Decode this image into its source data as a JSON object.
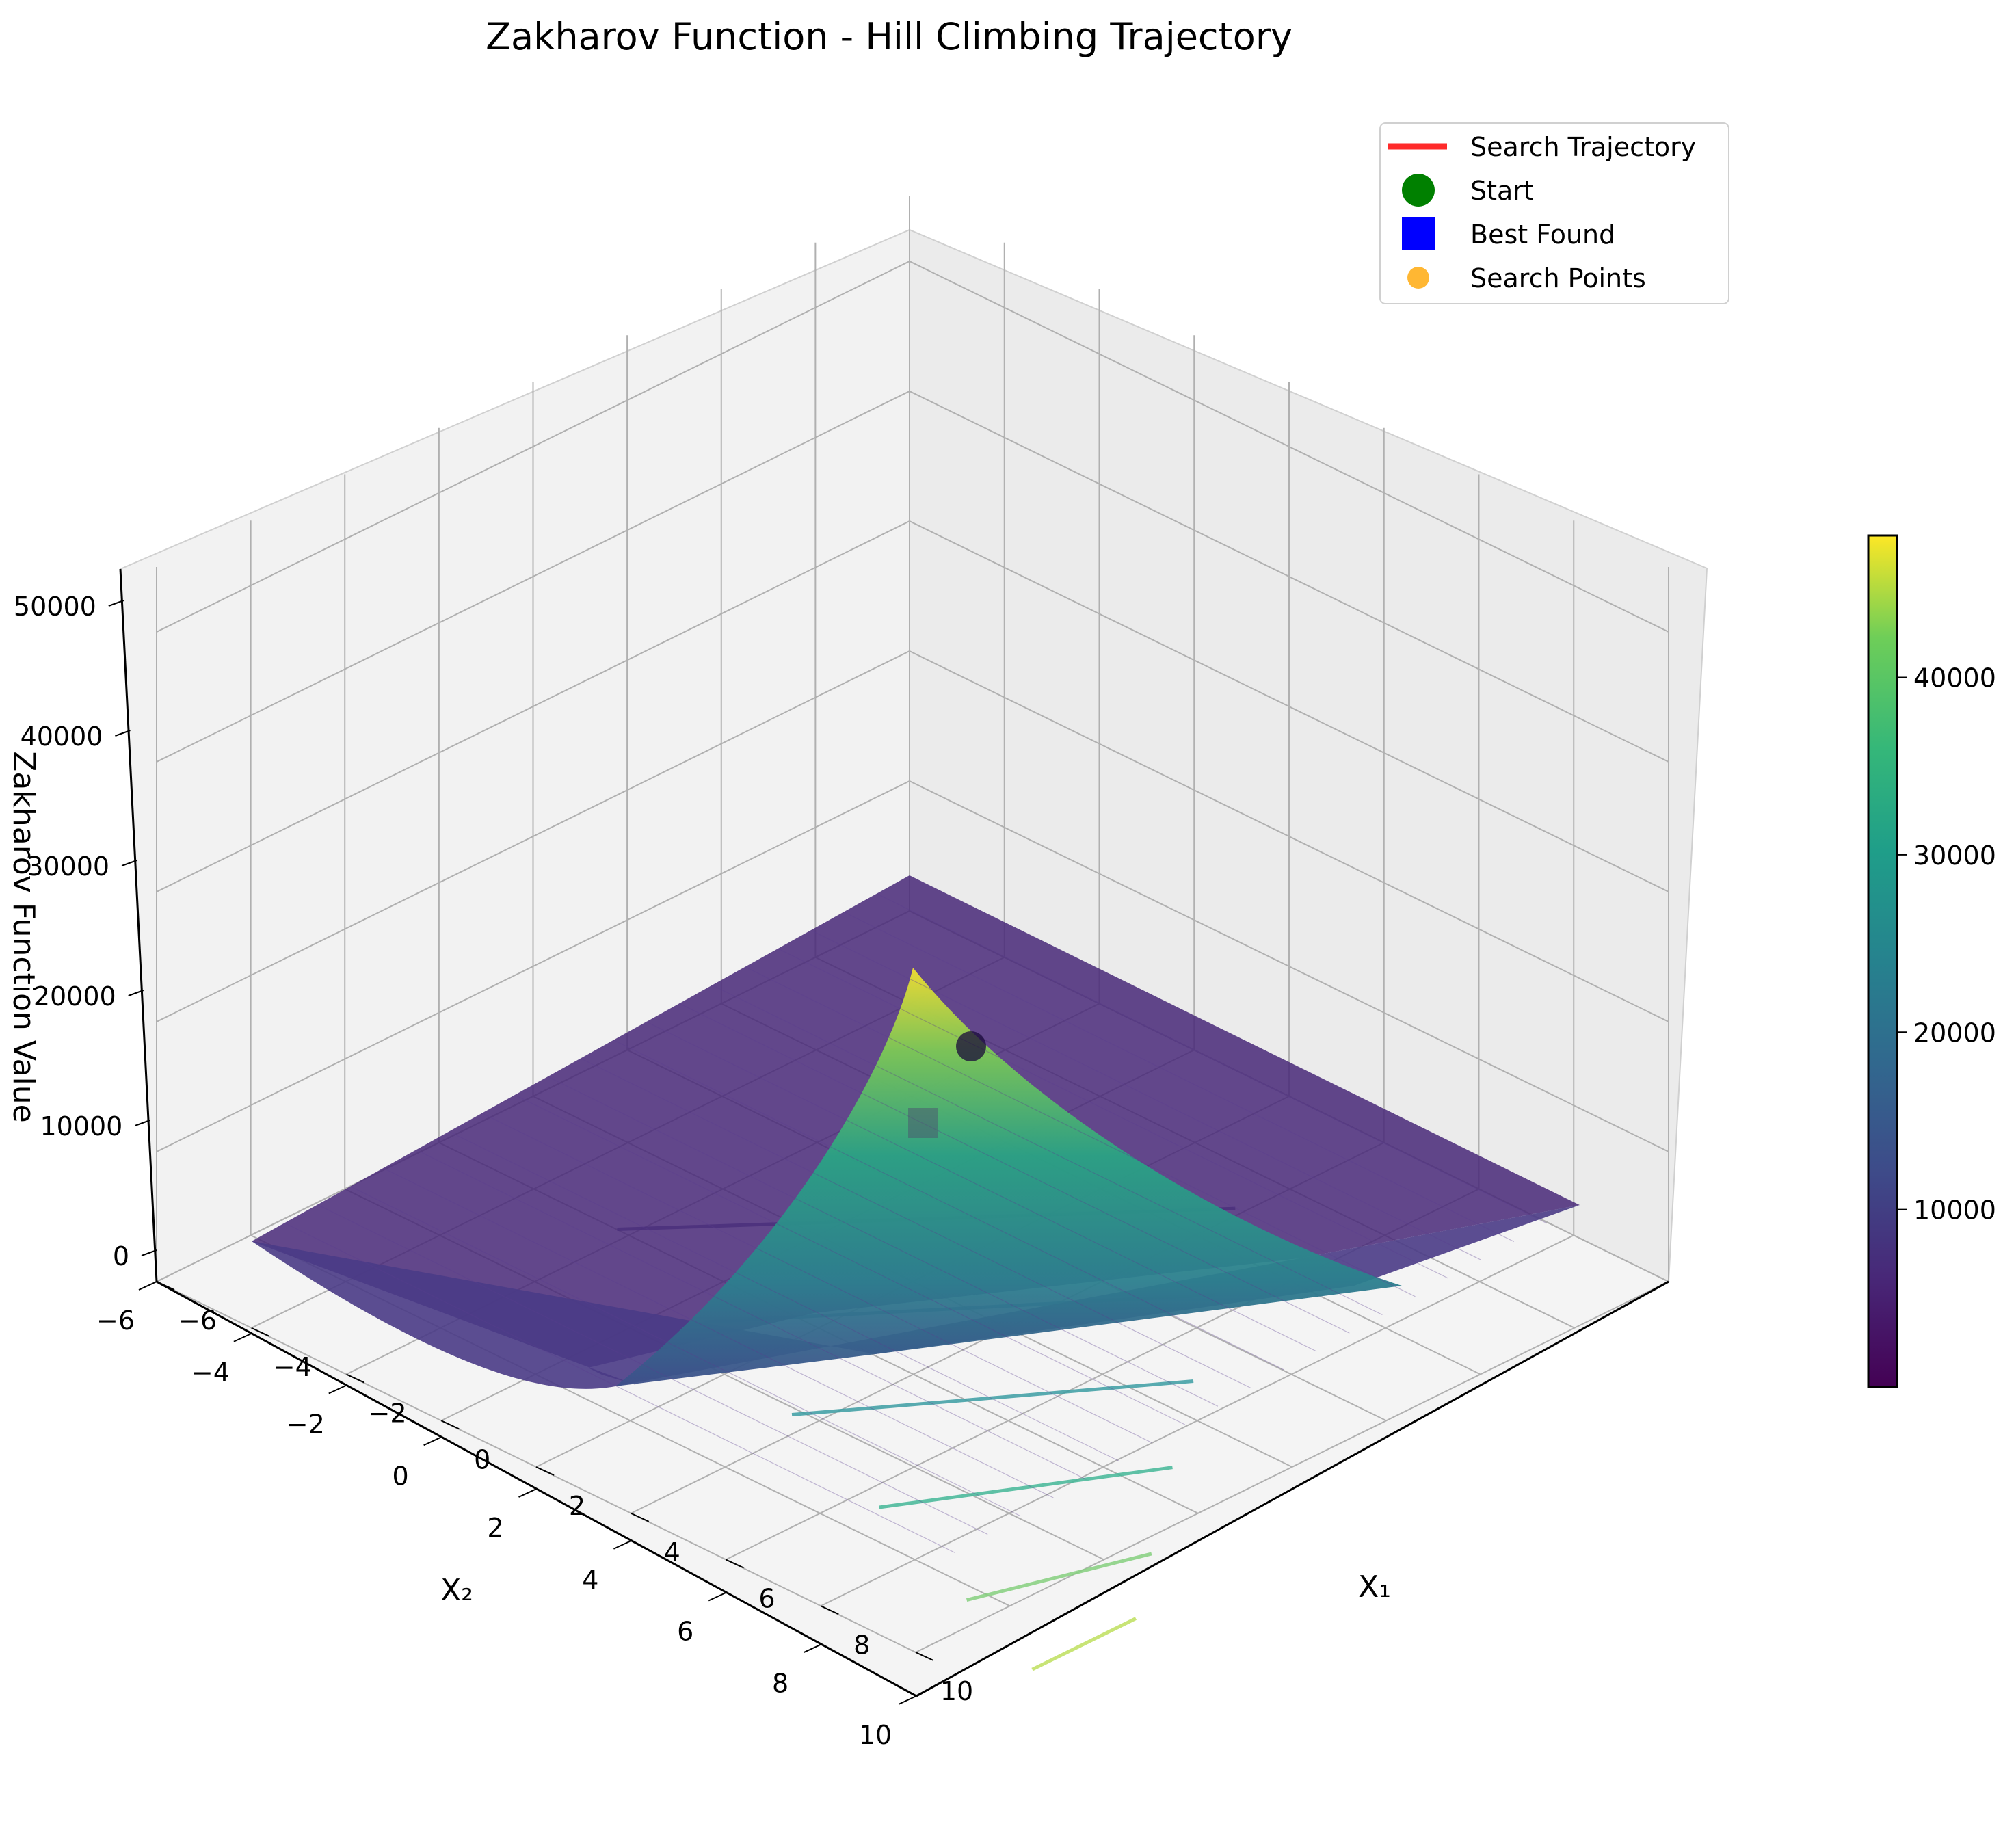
{
  "chart_data": {
    "type": "surface",
    "title": "Zakharov Function - Hill Climbing Trajectory",
    "xlabel": "X₁",
    "ylabel": "X₂",
    "zlabel": "Zakharov Function Value",
    "xlim": [
      -6,
      10
    ],
    "ylim": [
      -6,
      10
    ],
    "zlim": [
      0,
      55000
    ],
    "x_ticks": [
      "−6",
      "−4",
      "−2",
      "0",
      "2",
      "4",
      "6",
      "8",
      "10"
    ],
    "y_ticks": [
      "−6",
      "−4",
      "−2",
      "0",
      "2",
      "4",
      "6",
      "8",
      "10"
    ],
    "z_ticks": [
      "0",
      "10000",
      "20000",
      "30000",
      "40000",
      "50000"
    ],
    "colorbar": {
      "colormap": "viridis",
      "range": [
        0,
        48000
      ],
      "ticks": [
        "10000",
        "20000",
        "30000",
        "40000"
      ]
    },
    "contours_on_floor": [
      {
        "level": 8000,
        "color": "#5d5d93"
      },
      {
        "level": 16000,
        "color": "#4c82a4"
      },
      {
        "level": 24000,
        "color": "#3c9ea3"
      },
      {
        "level": 32000,
        "color": "#44b898"
      },
      {
        "level": 40000,
        "color": "#86d07f"
      },
      {
        "level": 46000,
        "color": "#bfe05f"
      }
    ],
    "legend": {
      "placement": "upper-right",
      "items": [
        {
          "label": "Search Trajectory",
          "marker": "line",
          "color": "#ff2a2a"
        },
        {
          "label": "Start",
          "marker": "circle",
          "color": "#008000"
        },
        {
          "label": "Best Found",
          "marker": "square",
          "color": "#0000ff"
        },
        {
          "label": "Search Points",
          "marker": "circle",
          "color": "#ffa500"
        }
      ]
    }
  }
}
